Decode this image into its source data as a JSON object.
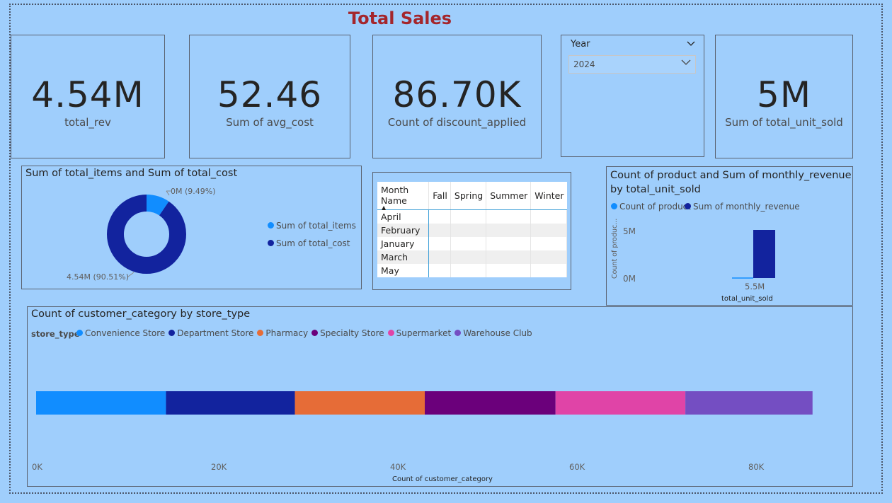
{
  "page": {
    "title": "Total Sales"
  },
  "kpis": [
    {
      "value": "4.54M",
      "label": "total_rev"
    },
    {
      "value": "52.46",
      "label": "Sum of avg_cost"
    },
    {
      "value": "86.70K",
      "label": "Count of discount_applied"
    },
    {
      "value": "5M",
      "label": "Sum of total_unit_sold"
    }
  ],
  "slicer": {
    "title": "Year",
    "selected": "2024"
  },
  "donut": {
    "title": "Sum of total_items and Sum of total_cost",
    "small_label": "0M (9.49%)",
    "large_label": "4.54M (90.51%)",
    "legend": [
      {
        "name": "Sum of total_items",
        "color": "#118dff"
      },
      {
        "name": "Sum of total_cost",
        "color": "#12239e"
      }
    ]
  },
  "matrix": {
    "columns": [
      "Month Name",
      "Fall",
      "Spring",
      "Summer",
      "Winter"
    ],
    "rows": [
      "April",
      "February",
      "January",
      "March",
      "May"
    ]
  },
  "combo": {
    "title_line1": "Count of product and Sum of monthly_revenue",
    "title_line2": "by total_unit_sold",
    "legend": [
      {
        "name": "Count of product",
        "color": "#118dff"
      },
      {
        "name": "Sum of monthly_revenue",
        "color": "#12239e"
      }
    ],
    "ylabel": "Count of produc...",
    "xlabel": "total_unit_sold",
    "yticks": [
      "5M",
      "0M"
    ],
    "xtick": "5.5M"
  },
  "stacked": {
    "title": "Count of customer_category by store_type",
    "legend_title": "store_type",
    "xlabel": "Count of customer_category",
    "xticks": [
      "0K",
      "20K",
      "40K",
      "60K",
      "80K"
    ]
  },
  "chart_data": [
    {
      "type": "pie",
      "title": "Sum of total_items and Sum of total_cost",
      "labels": [
        "Sum of total_items",
        "Sum of total_cost"
      ],
      "percent": [
        9.49,
        90.51
      ],
      "colors": [
        "#118dff",
        "#12239e"
      ]
    },
    {
      "type": "bar",
      "title": "Count of product and Sum of monthly_revenue by total_unit_sold",
      "categories": [
        "5.5M"
      ],
      "series": [
        {
          "name": "Count of product",
          "values": [
            0
          ],
          "color": "#118dff"
        },
        {
          "name": "Sum of monthly_revenue",
          "values": [
            5000000
          ],
          "color": "#12239e"
        }
      ],
      "ylim": [
        0,
        5000000
      ]
    },
    {
      "type": "bar",
      "orientation": "horizontal-stacked",
      "title": "Count of customer_category by store_type",
      "xlabel": "Count of customer_category",
      "xlim": [
        0,
        80000
      ],
      "series": [
        {
          "name": "Convenience Store",
          "value": 14500,
          "color": "#118dff"
        },
        {
          "name": "Department Store",
          "value": 14400,
          "color": "#12239e"
        },
        {
          "name": "Pharmacy",
          "value": 14500,
          "color": "#e66c37"
        },
        {
          "name": "Specialty Store",
          "value": 14600,
          "color": "#6b007b"
        },
        {
          "name": "Supermarket",
          "value": 14500,
          "color": "#e044a7"
        },
        {
          "name": "Warehouse Club",
          "value": 14200,
          "color": "#744ec2"
        }
      ]
    }
  ]
}
